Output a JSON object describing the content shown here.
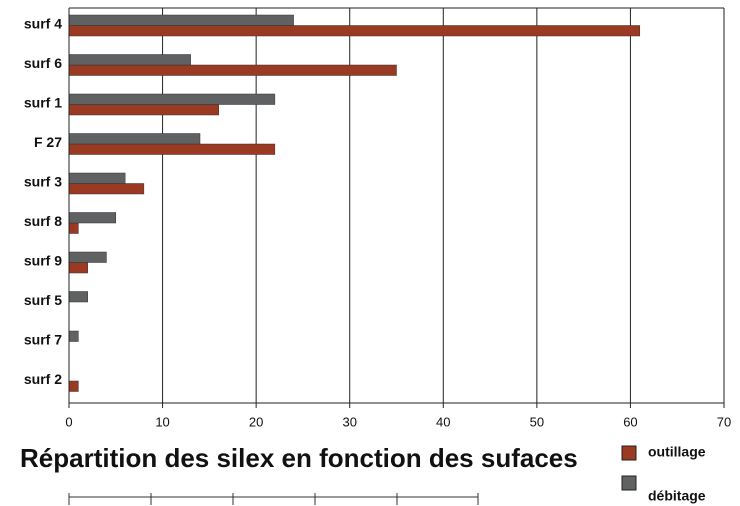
{
  "chart_data": {
    "type": "hbar",
    "title": "Répartition des silex en fonction des sufaces",
    "categories": [
      "surf 4",
      "surf 6",
      "surf 1",
      "F 27",
      "surf 3",
      "surf 8",
      "surf 9",
      "surf 5",
      "surf 7",
      "surf 2"
    ],
    "series": [
      {
        "name": "outillage",
        "color": "#9b3a22",
        "values": [
          61,
          35,
          16,
          22,
          8,
          1,
          2,
          0,
          0,
          1
        ]
      },
      {
        "name": "débitage",
        "color": "#606163",
        "values": [
          24,
          13,
          22,
          14,
          6,
          5,
          4,
          2,
          1,
          0
        ]
      }
    ],
    "xlim": [
      0,
      70
    ],
    "xticks": [
      0,
      10,
      20,
      30,
      40,
      50,
      60,
      70
    ],
    "grid": true
  }
}
